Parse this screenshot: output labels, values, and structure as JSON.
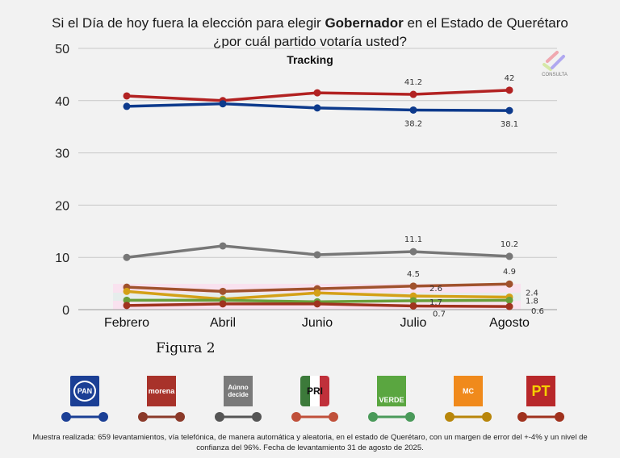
{
  "title": {
    "line1_before": "Si el Día de hoy fuera la elección para elegir ",
    "line1_bold": "Gobernador",
    "line1_after": " en el Estado de Querétaro",
    "line2": "¿por cuál partido votaría usted?"
  },
  "figure_label": "Figura 2",
  "watermark": {
    "text": "CONSULTA",
    "icon": "consulta-checkmark-logo"
  },
  "chart_data": {
    "type": "line",
    "title": "Si el Día de hoy fuera la elección para elegir Gobernador en el Estado de Querétaro ¿por cuál partido votaría usted?",
    "subtitle": "Tracking",
    "xlabel": "",
    "ylabel": "",
    "ylim": [
      0,
      50
    ],
    "yticks": [
      "0",
      "10",
      "20",
      "30",
      "40",
      "50"
    ],
    "categories": [
      "Febrero",
      "Abril",
      "Junio",
      "Julio",
      "Agosto"
    ],
    "grid": true,
    "legend_position": "bottom",
    "series": [
      {
        "name": "Morena",
        "color": "#b22222",
        "values": [
          40.9,
          40.0,
          41.5,
          41.2,
          42.0
        ],
        "labels": [
          null,
          null,
          null,
          "41.2",
          "42"
        ],
        "label_pos": "above"
      },
      {
        "name": "PAN",
        "color": "#0d3a8c",
        "values": [
          38.9,
          39.4,
          38.6,
          38.2,
          38.1
        ],
        "labels": [
          null,
          null,
          null,
          "38.2",
          "38.1"
        ],
        "label_pos": "below"
      },
      {
        "name": "Aún no decide",
        "color": "#777777",
        "values": [
          10.0,
          12.2,
          10.5,
          11.1,
          10.2
        ],
        "labels": [
          null,
          null,
          null,
          "11.1",
          "10.2"
        ],
        "label_pos": "above"
      },
      {
        "name": "PT",
        "color": "#a0522d",
        "values": [
          4.3,
          3.5,
          4.0,
          4.5,
          4.9
        ],
        "labels": [
          null,
          null,
          null,
          "4.5",
          "4.9"
        ],
        "label_pos": "above"
      },
      {
        "name": "Movimiento Ciudadano",
        "color": "#d4a017",
        "values": [
          3.5,
          2.0,
          3.2,
          2.6,
          2.4
        ],
        "labels": [
          null,
          null,
          null,
          "2.6",
          "2.4"
        ],
        "label_pos": "above-right"
      },
      {
        "name": "Verde",
        "color": "#6a9e3a",
        "values": [
          1.8,
          1.8,
          1.5,
          1.7,
          1.8
        ],
        "labels": [
          null,
          null,
          null,
          "1.7",
          "1.8"
        ],
        "label_pos": "right"
      },
      {
        "name": "PRI",
        "color": "#a0321e",
        "values": [
          0.8,
          1.1,
          1.1,
          0.7,
          0.6
        ],
        "labels": [
          null,
          null,
          null,
          "0.7",
          "0.6"
        ],
        "label_pos": "below-right"
      }
    ]
  },
  "legend": [
    {
      "party": "PAN",
      "logo_text": "PAN",
      "logo_bg": "#1b3f95",
      "line_color": "#1b3f95"
    },
    {
      "party": "Morena",
      "logo_text": "morena",
      "logo_bg": "#a8322a",
      "line_color": "#8b3a2a"
    },
    {
      "party": "Aún no decide",
      "logo_text": "Aúnno decide",
      "logo_bg": "#7a7a7a",
      "line_color": "#555555"
    },
    {
      "party": "PRI",
      "logo_text": "PRI",
      "logo_bg": "#3c7a3a",
      "line_color": "#c0503a"
    },
    {
      "party": "Verde",
      "logo_text": "VERDE",
      "logo_bg": "#5aa640",
      "line_color": "#4a9a5a"
    },
    {
      "party": "Movimiento Ciudadano",
      "logo_text": "MC",
      "logo_bg": "#f08a1c",
      "line_color": "#b8860b"
    },
    {
      "party": "PT",
      "logo_text": "PT",
      "logo_bg": "#b8282a",
      "line_color": "#a0321e"
    }
  ],
  "footnote": "Muestra realizada: 659 levantamientos, vía telefónica, de manera automática y aleatoria, en el estado de Querétaro, con un margen de error del +-4% y un nivel de confianza del 96%. Fecha de levantamiento 31 de agosto de 2025."
}
